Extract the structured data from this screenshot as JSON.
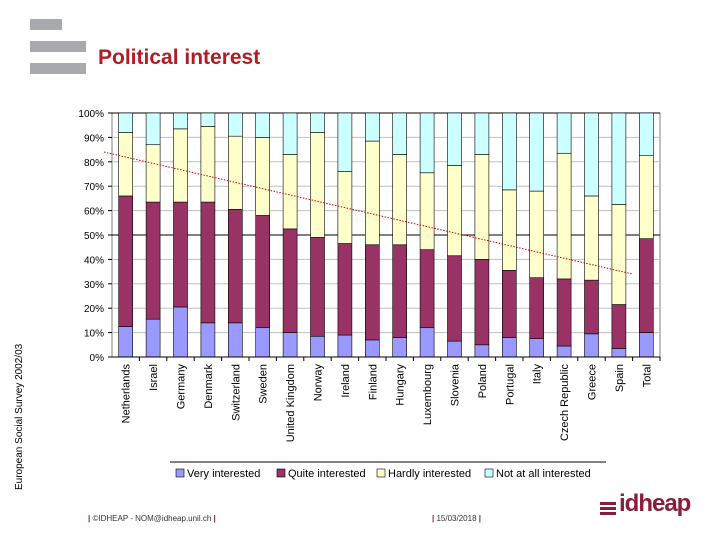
{
  "page": {
    "title": "Political interest",
    "side_label": "European Social Survey 2002/03",
    "footer_left": "©IDHEAP - NOM@idheap.unil.ch",
    "footer_date": "15/03/2018",
    "logo_text": "idheap"
  },
  "colors": {
    "title": "#b01e24",
    "very": "#9999ff",
    "quite": "#993366",
    "hardly": "#ffffcc",
    "not_at_all": "#ccffff",
    "trend": "#cc0000",
    "plot_bg": "#ffffff",
    "logo": "#8a1d3b"
  },
  "chart_data": {
    "type": "bar",
    "stacked": true,
    "orientation": "vertical",
    "categories": [
      "Netherlands",
      "Israel",
      "Germany",
      "Denmark",
      "Switzerland",
      "Sweden",
      "United Kingdom",
      "Norway",
      "Ireland",
      "Finland",
      "Hungary",
      "Luxembourg",
      "Slovenia",
      "Poland",
      "Portugal",
      "Italy",
      "Czech Republic",
      "Greece",
      "Spain",
      "Total"
    ],
    "series": [
      {
        "name": "Very interested",
        "values": [
          12.5,
          15.5,
          20.5,
          14,
          14,
          12,
          10,
          8.5,
          9,
          7,
          8,
          12,
          6.5,
          5,
          8,
          7.5,
          4.5,
          9.5,
          3.5,
          10
        ]
      },
      {
        "name": "Quite interested",
        "values": [
          53.5,
          48,
          43,
          49.5,
          46.5,
          46,
          42.5,
          40.5,
          37.5,
          39,
          38,
          32,
          35,
          35,
          27.5,
          25,
          27.5,
          22,
          18,
          38.5
        ]
      },
      {
        "name": "Hardly interested",
        "values": [
          26,
          23.5,
          30,
          31,
          30,
          32,
          30.5,
          43,
          29.5,
          42.5,
          37,
          31.5,
          37,
          43,
          33,
          35.5,
          51.5,
          34.5,
          41,
          34
        ]
      },
      {
        "name": "Not at all interested",
        "values": [
          8,
          13,
          6.5,
          5.5,
          9.5,
          10,
          17,
          8,
          24,
          11.5,
          17,
          24.5,
          21.5,
          17,
          31.5,
          32,
          16.5,
          34,
          37.5,
          17.5
        ]
      }
    ],
    "trendline": {
      "series": "Very interested + Quite interested",
      "start": 84,
      "end": 34
    },
    "y_ticks": [
      "0%",
      "10%",
      "20%",
      "30%",
      "40%",
      "50%",
      "60%",
      "70%",
      "80%",
      "90%",
      "100%"
    ],
    "ylim": [
      0,
      100
    ],
    "legend": "bottom",
    "grid": true
  }
}
